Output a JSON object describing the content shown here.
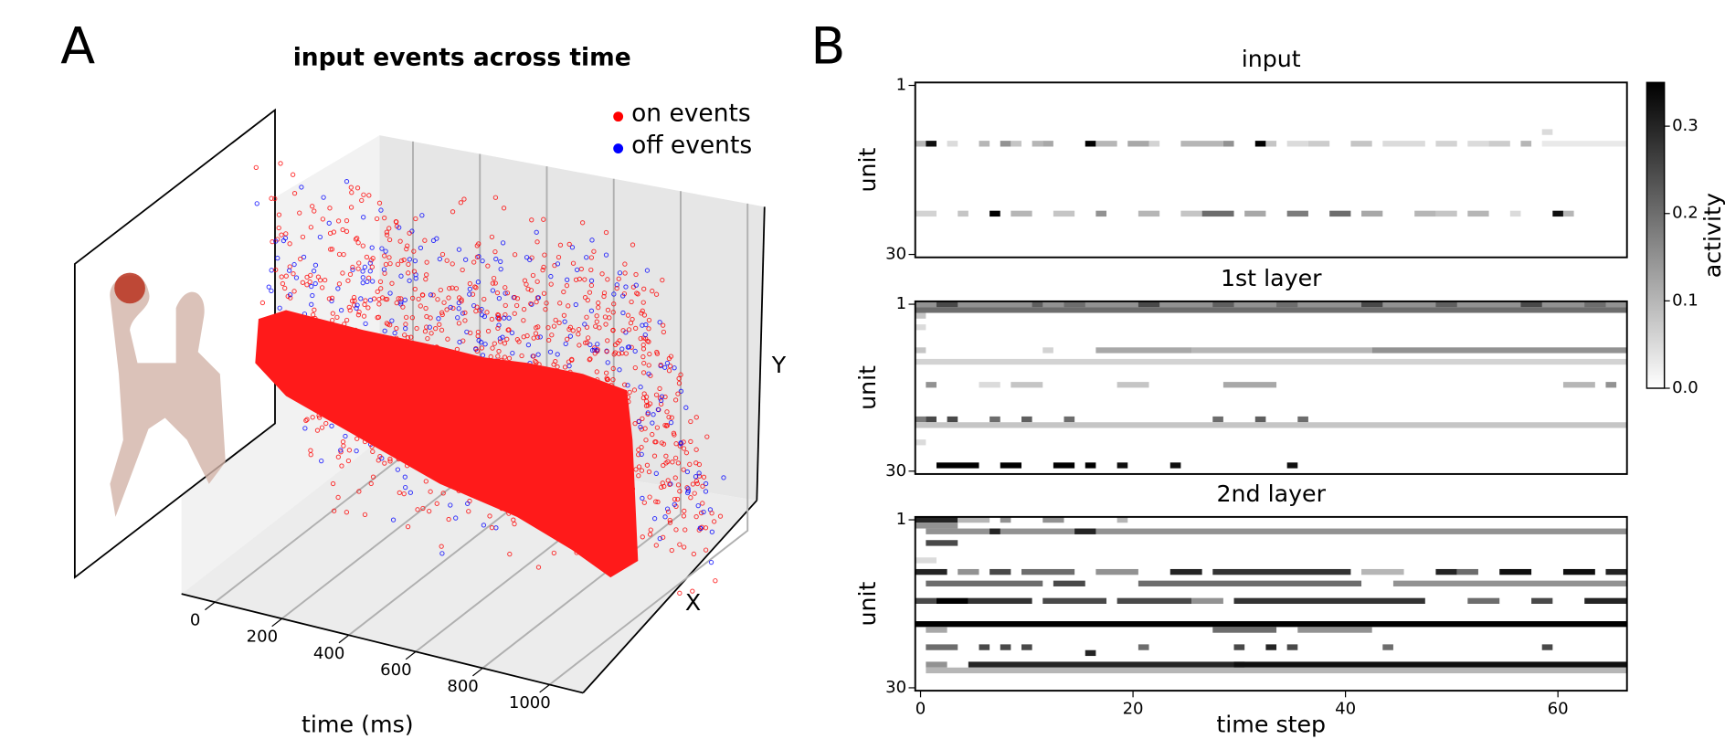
{
  "panel_labels": [
    "A",
    "B"
  ],
  "colorbar": {
    "label": "activity",
    "lim": [
      0,
      0.35
    ],
    "ticks": [
      {
        "value": 0,
        "label": "0.0"
      },
      0.1,
      0.2,
      0.3
    ]
  },
  "chart_data": [
    {
      "type": "scatter3d",
      "title": "input events across time",
      "xlabel": "time (ms)",
      "ylabel": "X",
      "zlabel": "Y",
      "xlim": [
        -100,
        1100
      ],
      "xticks": [
        0,
        200,
        400,
        600,
        800,
        1000
      ],
      "series": [
        {
          "name": "on events",
          "color": "#ff0000"
        },
        {
          "name": "off events",
          "color": "#0000ff"
        }
      ]
    },
    {
      "type": "heatmap",
      "title": "input",
      "ylabel": "unit",
      "xlim": [
        -0.5,
        66.5
      ],
      "ylim": [
        30.5,
        0.5
      ],
      "yticks": [
        1,
        30
      ],
      "segments": [
        [
          11,
          0,
          0,
          0.1
        ],
        [
          11,
          1,
          1,
          0.33
        ],
        [
          11,
          3,
          3,
          0.05
        ],
        [
          11,
          6,
          6,
          0.1
        ],
        [
          11,
          8,
          8,
          0.15
        ],
        [
          11,
          9,
          9,
          0.08
        ],
        [
          11,
          11,
          11,
          0.1
        ],
        [
          11,
          12,
          12,
          0.12
        ],
        [
          11,
          16,
          16,
          0.35
        ],
        [
          11,
          17,
          18,
          0.1
        ],
        [
          11,
          20,
          21,
          0.12
        ],
        [
          11,
          22,
          22,
          0.06
        ],
        [
          11,
          25,
          28,
          0.1
        ],
        [
          11,
          29,
          29,
          0.15
        ],
        [
          11,
          32,
          32,
          0.35
        ],
        [
          11,
          33,
          33,
          0.08
        ],
        [
          11,
          35,
          36,
          0.05
        ],
        [
          11,
          37,
          38,
          0.07
        ],
        [
          11,
          41,
          42,
          0.08
        ],
        [
          11,
          44,
          47,
          0.05
        ],
        [
          11,
          49,
          50,
          0.06
        ],
        [
          11,
          52,
          53,
          0.05
        ],
        [
          11,
          54,
          55,
          0.07
        ],
        [
          11,
          57,
          57,
          0.1
        ],
        [
          11,
          59,
          66,
          0.03
        ],
        [
          9,
          59,
          59,
          0.05
        ],
        [
          23,
          0,
          1,
          0.06
        ],
        [
          23,
          4,
          4,
          0.08
        ],
        [
          23,
          7,
          7,
          0.35
        ],
        [
          23,
          9,
          10,
          0.1
        ],
        [
          23,
          13,
          14,
          0.08
        ],
        [
          23,
          17,
          17,
          0.15
        ],
        [
          23,
          21,
          22,
          0.1
        ],
        [
          23,
          25,
          26,
          0.08
        ],
        [
          23,
          27,
          29,
          0.2
        ],
        [
          23,
          31,
          32,
          0.12
        ],
        [
          23,
          35,
          36,
          0.18
        ],
        [
          23,
          39,
          40,
          0.2
        ],
        [
          23,
          42,
          43,
          0.12
        ],
        [
          23,
          47,
          48,
          0.1
        ],
        [
          23,
          49,
          50,
          0.08
        ],
        [
          23,
          52,
          53,
          0.1
        ],
        [
          23,
          56,
          56,
          0.05
        ],
        [
          23,
          60,
          60,
          0.33
        ],
        [
          23,
          61,
          61,
          0.1
        ]
      ]
    },
    {
      "type": "heatmap",
      "title": "1st layer",
      "ylabel": "unit",
      "xlim": [
        -0.5,
        66.5
      ],
      "ylim": [
        30.5,
        0.5
      ],
      "yticks": [
        1,
        30
      ],
      "segments": [
        [
          1,
          0,
          66,
          0.15
        ],
        [
          1,
          2,
          3,
          0.25
        ],
        [
          1,
          11,
          11,
          0.22
        ],
        [
          1,
          14,
          15,
          0.2
        ],
        [
          1,
          21,
          22,
          0.25
        ],
        [
          1,
          28,
          29,
          0.22
        ],
        [
          1,
          34,
          35,
          0.2
        ],
        [
          1,
          42,
          43,
          0.25
        ],
        [
          1,
          49,
          50,
          0.22
        ],
        [
          1,
          57,
          58,
          0.25
        ],
        [
          1,
          63,
          64,
          0.2
        ],
        [
          2,
          0,
          66,
          0.2
        ],
        [
          3,
          0,
          0,
          0.08
        ],
        [
          5,
          0,
          0,
          0.05
        ],
        [
          9,
          0,
          0,
          0.08
        ],
        [
          9,
          12,
          12,
          0.06
        ],
        [
          9,
          17,
          25,
          0.12
        ],
        [
          9,
          26,
          42,
          0.1
        ],
        [
          9,
          43,
          66,
          0.15
        ],
        [
          11,
          0,
          66,
          0.06
        ],
        [
          15,
          1,
          1,
          0.15
        ],
        [
          15,
          6,
          7,
          0.05
        ],
        [
          15,
          9,
          11,
          0.08
        ],
        [
          15,
          19,
          21,
          0.08
        ],
        [
          15,
          29,
          33,
          0.12
        ],
        [
          15,
          61,
          63,
          0.1
        ],
        [
          15,
          65,
          65,
          0.15
        ],
        [
          21,
          0,
          0,
          0.18
        ],
        [
          21,
          1,
          1,
          0.25
        ],
        [
          21,
          3,
          3,
          0.25
        ],
        [
          21,
          7,
          7,
          0.2
        ],
        [
          21,
          10,
          10,
          0.22
        ],
        [
          21,
          14,
          14,
          0.2
        ],
        [
          21,
          28,
          28,
          0.2
        ],
        [
          21,
          32,
          32,
          0.22
        ],
        [
          21,
          36,
          36,
          0.2
        ],
        [
          22,
          0,
          66,
          0.08
        ],
        [
          25,
          0,
          0,
          0.05
        ],
        [
          29,
          2,
          5,
          0.35
        ],
        [
          29,
          8,
          9,
          0.35
        ],
        [
          29,
          13,
          14,
          0.35
        ],
        [
          29,
          16,
          16,
          0.35
        ],
        [
          29,
          19,
          19,
          0.33
        ],
        [
          29,
          24,
          24,
          0.33
        ],
        [
          29,
          35,
          35,
          0.33
        ]
      ]
    },
    {
      "type": "heatmap",
      "title": "2nd layer",
      "ylabel": "unit",
      "xlabel": "time step",
      "xlim": [
        -0.5,
        66.5
      ],
      "ylim": [
        30.5,
        0.5
      ],
      "yticks": [
        1,
        30
      ],
      "xticks": [
        0,
        20,
        40,
        60
      ],
      "segments": [
        [
          1,
          0,
          3,
          0.3
        ],
        [
          1,
          4,
          6,
          0.1
        ],
        [
          1,
          8,
          8,
          0.15
        ],
        [
          1,
          12,
          13,
          0.15
        ],
        [
          1,
          19,
          19,
          0.1
        ],
        [
          2,
          0,
          3,
          0.15
        ],
        [
          3,
          1,
          66,
          0.15
        ],
        [
          3,
          7,
          7,
          0.3
        ],
        [
          3,
          15,
          16,
          0.3
        ],
        [
          5,
          1,
          3,
          0.25
        ],
        [
          8,
          0,
          1,
          0.05
        ],
        [
          10,
          0,
          2,
          0.3
        ],
        [
          10,
          4,
          5,
          0.15
        ],
        [
          10,
          7,
          8,
          0.25
        ],
        [
          10,
          10,
          14,
          0.2
        ],
        [
          10,
          17,
          20,
          0.15
        ],
        [
          10,
          24,
          26,
          0.3
        ],
        [
          10,
          28,
          40,
          0.28
        ],
        [
          10,
          42,
          45,
          0.1
        ],
        [
          10,
          49,
          50,
          0.3
        ],
        [
          10,
          51,
          52,
          0.2
        ],
        [
          10,
          55,
          57,
          0.33
        ],
        [
          10,
          61,
          63,
          0.33
        ],
        [
          10,
          65,
          66,
          0.3
        ],
        [
          12,
          1,
          11,
          0.2
        ],
        [
          12,
          13,
          15,
          0.25
        ],
        [
          12,
          21,
          41,
          0.2
        ],
        [
          12,
          45,
          66,
          0.15
        ],
        [
          15,
          0,
          1,
          0.25
        ],
        [
          15,
          2,
          4,
          0.35
        ],
        [
          15,
          5,
          10,
          0.28
        ],
        [
          15,
          12,
          17,
          0.25
        ],
        [
          15,
          19,
          25,
          0.25
        ],
        [
          15,
          26,
          28,
          0.15
        ],
        [
          15,
          30,
          47,
          0.28
        ],
        [
          15,
          52,
          54,
          0.2
        ],
        [
          15,
          58,
          59,
          0.25
        ],
        [
          15,
          63,
          66,
          0.3
        ],
        [
          19,
          0,
          66,
          0.35
        ],
        [
          20,
          1,
          2,
          0.12
        ],
        [
          20,
          28,
          33,
          0.2
        ],
        [
          20,
          36,
          42,
          0.15
        ],
        [
          23,
          1,
          3,
          0.2
        ],
        [
          23,
          6,
          6,
          0.25
        ],
        [
          23,
          8,
          8,
          0.25
        ],
        [
          23,
          10,
          10,
          0.25
        ],
        [
          23,
          21,
          21,
          0.2
        ],
        [
          23,
          30,
          30,
          0.25
        ],
        [
          23,
          33,
          33,
          0.3
        ],
        [
          23,
          35,
          35,
          0.25
        ],
        [
          23,
          44,
          44,
          0.2
        ],
        [
          23,
          59,
          59,
          0.25
        ],
        [
          24,
          16,
          16,
          0.3
        ],
        [
          26,
          1,
          2,
          0.15
        ],
        [
          26,
          5,
          30,
          0.3
        ],
        [
          26,
          30,
          66,
          0.33
        ],
        [
          27,
          1,
          66,
          0.1
        ]
      ]
    }
  ]
}
